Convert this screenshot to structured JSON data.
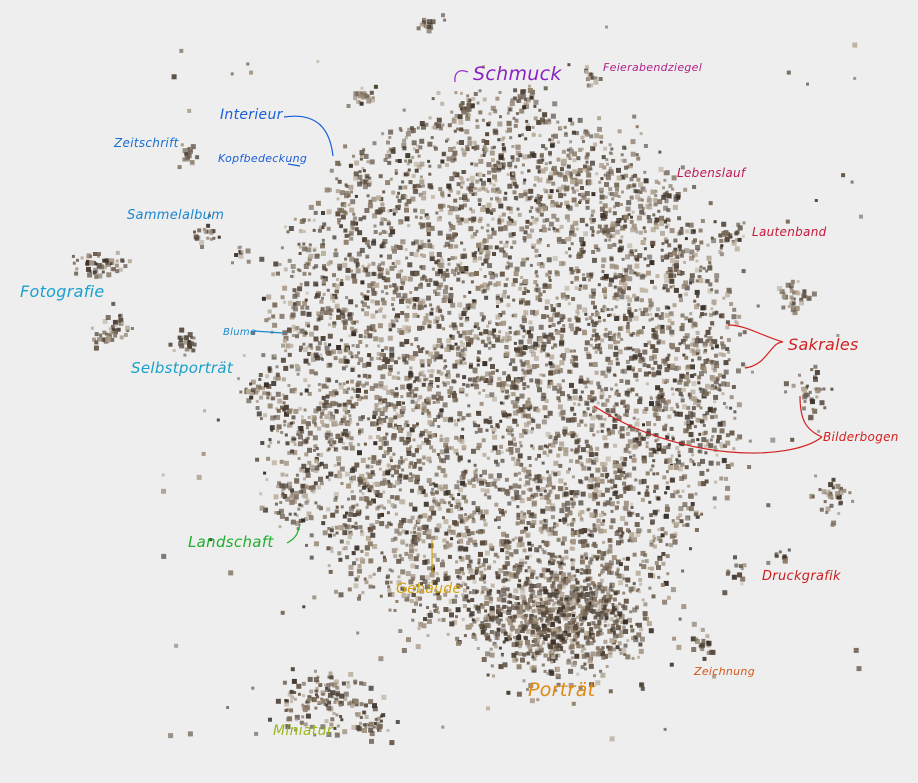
{
  "labels": {
    "schmuck": {
      "text": "Schmuck",
      "color": "#8b21c4"
    },
    "feierabendziegel": {
      "text": "Feierabendziegel",
      "color": "#b0208a"
    },
    "lebenslauf": {
      "text": "Lebenslauf",
      "color": "#c0185a"
    },
    "lautenband": {
      "text": "Lautenband",
      "color": "#c8183a"
    },
    "sakrales": {
      "text": "Sakrales",
      "color": "#d42020"
    },
    "bilderbogen": {
      "text": "Bilderbogen",
      "color": "#d42020"
    },
    "druckgrafik": {
      "text": "Druckgrafik",
      "color": "#c81f1f"
    },
    "zeichnung": {
      "text": "Zeichnung",
      "color": "#d4561a"
    },
    "portraet": {
      "text": "Porträt",
      "color": "#e08a10"
    },
    "gebaeude": {
      "text": "Gebäude",
      "color": "#d4a310"
    },
    "miniatur": {
      "text": "Miniatur",
      "color": "#9ab81a"
    },
    "landschaft": {
      "text": "Landschaft",
      "color": "#1fae2e"
    },
    "selbstportraet": {
      "text": "Selbstporträt",
      "color": "#1aa0c8"
    },
    "fotografie": {
      "text": "Fotografie",
      "color": "#1aa0d0"
    },
    "sammelalbum": {
      "text": "Sammelalbum",
      "color": "#1a86d0"
    },
    "zeitschrift": {
      "text": "Zeitschrift",
      "color": "#1a6fd0"
    },
    "kopfbedeckung": {
      "text": "Kopfbedeckung",
      "color": "#1a5ed8"
    },
    "interieur": {
      "text": "Interieur",
      "color": "#1a5ed8"
    },
    "blume": {
      "text": "Blume",
      "color": "#1a8ad0"
    }
  }
}
